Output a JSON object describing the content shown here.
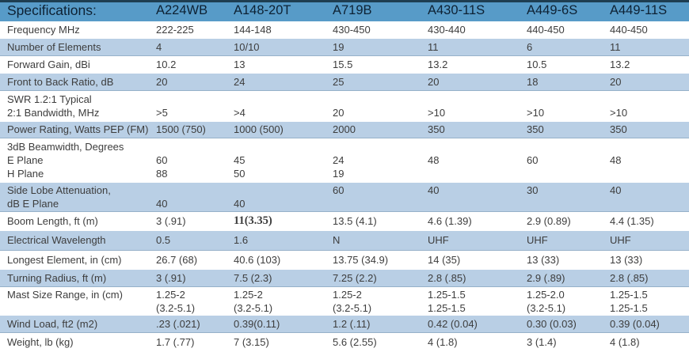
{
  "header": {
    "spec_label": "Specifications:",
    "models": [
      "A224WB",
      "A148-20T",
      "A719B",
      "A430-11S",
      "A449-6S",
      "A449-11S"
    ]
  },
  "rows": [
    {
      "label": [
        "Frequency MHz"
      ],
      "cells": [
        [
          "222-225"
        ],
        [
          "144-148"
        ],
        [
          "430-450"
        ],
        [
          "430-440"
        ],
        [
          "440-450"
        ],
        [
          "440-450"
        ]
      ]
    },
    {
      "label": [
        "Number of Elements"
      ],
      "cells": [
        [
          "4"
        ],
        [
          "10/10"
        ],
        [
          "19"
        ],
        [
          "11"
        ],
        [
          "6"
        ],
        [
          "11"
        ]
      ]
    },
    {
      "label": [
        "Forward Gain, dBi"
      ],
      "cells": [
        [
          "10.2"
        ],
        [
          "13"
        ],
        [
          "15.5"
        ],
        [
          "13.2"
        ],
        [
          "10.5"
        ],
        [
          "13.2"
        ]
      ]
    },
    {
      "label": [
        "Front to Back Ratio, dB"
      ],
      "cells": [
        [
          "20"
        ],
        [
          "24"
        ],
        [
          "25"
        ],
        [
          "20"
        ],
        [
          "18"
        ],
        [
          "20"
        ]
      ]
    },
    {
      "label": [
        "SWR 1.2:1 Typical",
        "2:1 Bandwidth, MHz"
      ],
      "cells": [
        [
          "",
          ">5"
        ],
        [
          "",
          ">4"
        ],
        [
          "",
          "20"
        ],
        [
          "",
          ">10"
        ],
        [
          "",
          ">10"
        ],
        [
          "",
          ">10"
        ]
      ]
    },
    {
      "label": [
        "Power Rating, Watts PEP (FM)"
      ],
      "cells": [
        [
          "1500 (750)"
        ],
        [
          "1000 (500)"
        ],
        [
          "2000"
        ],
        [
          "350"
        ],
        [
          "350"
        ],
        [
          "350"
        ]
      ]
    },
    {
      "label": [
        "3dB Beamwidth, Degrees",
        "E Plane",
        "H Plane"
      ],
      "cells": [
        [
          "",
          "60",
          "88"
        ],
        [
          "",
          "45",
          "50"
        ],
        [
          "",
          "24",
          "19"
        ],
        [
          "",
          "48",
          ""
        ],
        [
          "",
          "60",
          ""
        ],
        [
          "",
          "48",
          ""
        ]
      ]
    },
    {
      "label": [
        "Side Lobe Attenuation,",
        "dB E Plane"
      ],
      "cells": [
        [
          "",
          "40"
        ],
        [
          "",
          "40"
        ],
        [
          "60",
          ""
        ],
        [
          "40",
          ""
        ],
        [
          "30",
          ""
        ],
        [
          "40",
          ""
        ]
      ]
    },
    {
      "label": [
        "Boom Length, ft (m)"
      ],
      "cells": [
        [
          "3 (.91)"
        ],
        [
          "11(3.35)"
        ],
        [
          "13.5 (4.1)"
        ],
        [
          "4.6 (1.39)"
        ],
        [
          "2.9 (0.89)"
        ],
        [
          "4.4 (1.35)"
        ]
      ],
      "bold_serif_cols": [
        1
      ]
    },
    {
      "label": [
        "Electrical Wavelength"
      ],
      "cells": [
        [
          "0.5"
        ],
        [
          "1.6"
        ],
        [
          "N"
        ],
        [
          "UHF"
        ],
        [
          "UHF"
        ],
        [
          "UHF"
        ]
      ]
    },
    {
      "label": [
        "Longest Element, in (cm)"
      ],
      "cells": [
        [
          "26.7 (68)"
        ],
        [
          "40.6 (103)"
        ],
        [
          "13.75 (34.9)"
        ],
        [
          "14 (35)"
        ],
        [
          "13 (33)"
        ],
        [
          "13 (33)"
        ]
      ]
    },
    {
      "label": [
        "Turning Radius, ft (m)"
      ],
      "cells": [
        [
          "3 (.91)"
        ],
        [
          "7.5 (2.3)"
        ],
        [
          "7.25 (2.2)"
        ],
        [
          "2.8 (.85)"
        ],
        [
          "2.9 (.89)"
        ],
        [
          "2.8 (.85)"
        ]
      ]
    },
    {
      "label": [
        "Mast Size Range, in (cm)"
      ],
      "cells": [
        [
          "1.25-2",
          "(3.2-5.1)"
        ],
        [
          "1.25-2",
          "(3.2-5.1)"
        ],
        [
          "1.25-2",
          "(3.2-5.1)"
        ],
        [
          "1.25-1.5",
          "1.25-1.5"
        ],
        [
          "1.25-2.0",
          "(3.2-5.1)"
        ],
        [
          "1.25-1.5",
          "1.25-1.5"
        ]
      ]
    },
    {
      "label": [
        "Wind Load, ft2 (m2)"
      ],
      "cells": [
        [
          ".23 (.021)"
        ],
        [
          "0.39(0.11)"
        ],
        [
          "1.2 (.11)"
        ],
        [
          "0.42 (0.04)"
        ],
        [
          "0.30 (0.03)"
        ],
        [
          "0.39 (0.04)"
        ]
      ]
    },
    {
      "label": [
        "Weight, lb (kg)"
      ],
      "cells": [
        [
          "1.7 (.77)"
        ],
        [
          "7 (3.15)"
        ],
        [
          "5.6 (2.55)"
        ],
        [
          "4 (1.8)"
        ],
        [
          "3 (1.4)"
        ],
        [
          "4 (1.8)"
        ]
      ]
    }
  ],
  "colors": {
    "header_bg": "#579bc8",
    "header_top_border": "#1e3e52",
    "header_text": "#0d2133",
    "row_alt_bg": "#b9cfe5",
    "row_alt_border": "#96b1c9",
    "body_text": "#3d3d3d"
  }
}
